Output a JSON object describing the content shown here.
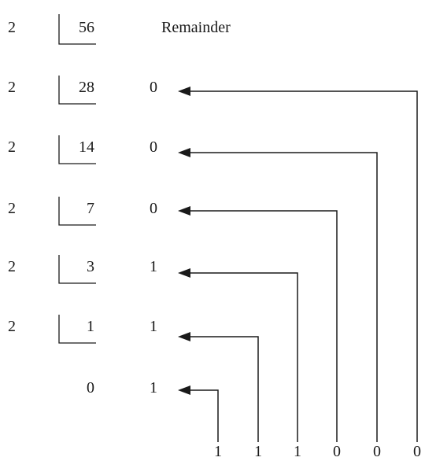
{
  "divisor": "2",
  "remainder_header": "Remainder",
  "steps": [
    {
      "divisor": "2",
      "dividend": "56",
      "remainder": ""
    },
    {
      "divisor": "2",
      "dividend": "28",
      "remainder": "0"
    },
    {
      "divisor": "2",
      "dividend": "14",
      "remainder": "0"
    },
    {
      "divisor": "2",
      "dividend": "7",
      "remainder": "0"
    },
    {
      "divisor": "2",
      "dividend": "3",
      "remainder": "1"
    },
    {
      "divisor": "2",
      "dividend": "1",
      "remainder": "1"
    },
    {
      "divisor": "",
      "dividend": "0",
      "remainder": "1"
    }
  ],
  "result_bits": [
    "1",
    "1",
    "1",
    "0",
    "0",
    "0"
  ]
}
